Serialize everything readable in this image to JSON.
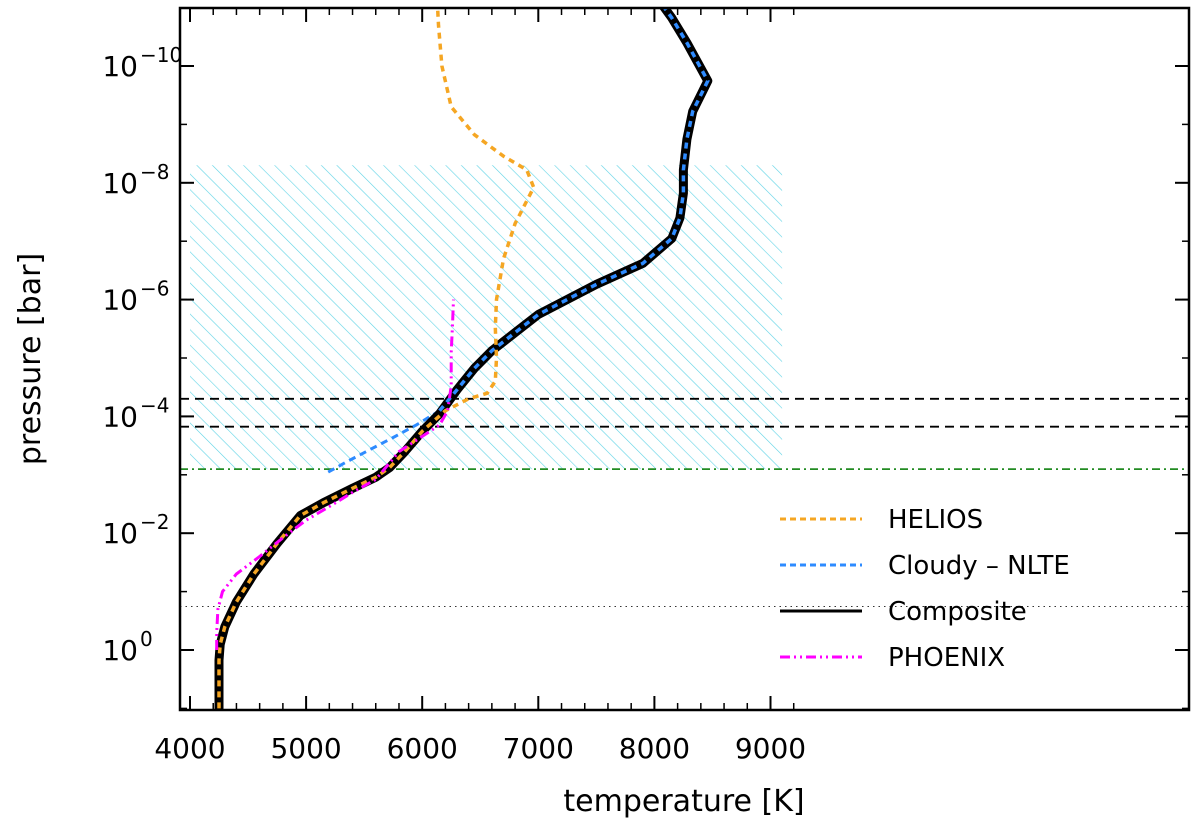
{
  "chart_data": {
    "type": "line",
    "xlabel": "temperature [K]",
    "ylabel": "pressure [bar]",
    "x_scale": "linear",
    "y_scale": "log",
    "y_inverted": true,
    "xlim": [
      3900,
      9200
    ],
    "ylim_bar": [
      10,
      1e-11
    ],
    "x_ticks": [
      "4000",
      "5000",
      "6000",
      "7000",
      "8000",
      "9000"
    ],
    "y_ticks": [
      {
        "value": 1e-10,
        "base": "10",
        "exp": "−10"
      },
      {
        "value": 1e-08,
        "base": "10",
        "exp": "−8"
      },
      {
        "value": 1e-06,
        "base": "10",
        "exp": "−6"
      },
      {
        "value": 0.0001,
        "base": "10",
        "exp": "−4"
      },
      {
        "value": 0.01,
        "base": "10",
        "exp": "−2"
      },
      {
        "value": 1,
        "base": "10",
        "exp": "0"
      }
    ],
    "grid": false,
    "legend_position": "bottom-right",
    "hatched_region": {
      "t_min": 4000,
      "t_max": 9100,
      "p_top": 5e-09,
      "p_bottom": 0.0008,
      "color": "#5fd3e6"
    },
    "reference_lines": [
      {
        "p": 5e-05,
        "style": "dashed",
        "color": "#000000"
      },
      {
        "p": 0.00015,
        "style": "dashed",
        "color": "#000000"
      },
      {
        "p": 0.0008,
        "style": "dashdot",
        "color": "#228B22"
      },
      {
        "p": 0.18,
        "style": "dotted",
        "color": "#333333"
      }
    ],
    "series": [
      {
        "name": "Composite",
        "color": "#000000",
        "style": "solid",
        "points": [
          [
            4250,
            10
          ],
          [
            4250,
            1.5
          ],
          [
            4260,
            0.8
          ],
          [
            4300,
            0.4
          ],
          [
            4400,
            0.15
          ],
          [
            4550,
            0.05
          ],
          [
            4750,
            0.015
          ],
          [
            4950,
            0.005
          ],
          [
            5150,
            0.003
          ],
          [
            5400,
            0.0017
          ],
          [
            5600,
            0.0011
          ],
          [
            5720,
            0.00075
          ],
          [
            5850,
            0.0004
          ],
          [
            6000,
            0.00018
          ],
          [
            6150,
            9e-05
          ],
          [
            6300,
            3.5e-05
          ],
          [
            6450,
            1.5e-05
          ],
          [
            6600,
            7.5e-06
          ],
          [
            7000,
            1.8e-06
          ],
          [
            7500,
            5.5e-07
          ],
          [
            7900,
            2.4e-07
          ],
          [
            8150,
            9e-08
          ],
          [
            8220,
            4e-08
          ],
          [
            8250,
            1.5e-08
          ],
          [
            8250,
            6e-09
          ],
          [
            8280,
            1.8e-09
          ],
          [
            8330,
            6e-10
          ],
          [
            8460,
            1.8e-10
          ],
          [
            8280,
            4e-11
          ],
          [
            8150,
            1.5e-11
          ],
          [
            8050,
            8e-12
          ]
        ]
      },
      {
        "name": "HELIOS",
        "color": "#F5A623",
        "style": "dashed",
        "points": [
          [
            4250,
            10
          ],
          [
            4250,
            1.5
          ],
          [
            4260,
            0.8
          ],
          [
            4300,
            0.4
          ],
          [
            4400,
            0.15
          ],
          [
            4550,
            0.05
          ],
          [
            4750,
            0.015
          ],
          [
            4950,
            0.005
          ],
          [
            5150,
            0.003
          ],
          [
            5400,
            0.0017
          ],
          [
            5600,
            0.0011
          ],
          [
            5720,
            0.00075
          ],
          [
            5850,
            0.0004
          ],
          [
            6000,
            0.00018
          ],
          [
            6200,
            8e-05
          ],
          [
            6400,
            5e-05
          ],
          [
            6560,
            4e-05
          ],
          [
            6630,
            2.5e-05
          ],
          [
            6640,
            1e-05
          ],
          [
            6630,
            3e-06
          ],
          [
            6640,
            1e-06
          ],
          [
            6700,
            2e-07
          ],
          [
            6800,
            5e-08
          ],
          [
            6960,
            1.2e-08
          ],
          [
            6900,
            6e-09
          ],
          [
            6700,
            3.5e-09
          ],
          [
            6450,
            1.5e-09
          ],
          [
            6250,
            5e-10
          ],
          [
            6170,
            1e-10
          ],
          [
            6140,
            2e-11
          ],
          [
            6130,
            8e-12
          ]
        ]
      },
      {
        "name": "Cloudy – NLTE",
        "color": "#2E8BFF",
        "style": "dashed",
        "points": [
          [
            5190,
            0.0009
          ],
          [
            5350,
            0.0006
          ],
          [
            5550,
            0.00037
          ],
          [
            5750,
            0.00023
          ],
          [
            5950,
            0.00014
          ],
          [
            6150,
            8e-05
          ],
          [
            6300,
            3.5e-05
          ],
          [
            6450,
            1.5e-05
          ],
          [
            6600,
            7.5e-06
          ],
          [
            7000,
            1.8e-06
          ],
          [
            7500,
            5.5e-07
          ],
          [
            7900,
            2.4e-07
          ],
          [
            8150,
            9e-08
          ],
          [
            8220,
            4e-08
          ],
          [
            8250,
            1.5e-08
          ],
          [
            8250,
            6e-09
          ],
          [
            8280,
            1.8e-09
          ],
          [
            8330,
            6e-10
          ],
          [
            8460,
            1.8e-10
          ],
          [
            8280,
            4e-11
          ],
          [
            8150,
            1.5e-11
          ],
          [
            8050,
            8e-12
          ]
        ]
      },
      {
        "name": "PHOENIX",
        "color": "#FF00FF",
        "style": "dashdotdot",
        "points": [
          [
            4230,
            1
          ],
          [
            4230,
            0.5
          ],
          [
            4240,
            0.2
          ],
          [
            4280,
            0.1
          ],
          [
            4400,
            0.05
          ],
          [
            4600,
            0.025
          ],
          [
            4800,
            0.012
          ],
          [
            5000,
            0.006
          ],
          [
            5200,
            0.0035
          ],
          [
            5400,
            0.002
          ],
          [
            5600,
            0.0012
          ],
          [
            5800,
            0.0004
          ],
          [
            6000,
            0.00022
          ],
          [
            6150,
            0.00014
          ],
          [
            6220,
            8e-05
          ],
          [
            6250,
            3e-05
          ],
          [
            6250,
            8e-06
          ],
          [
            6260,
            3e-06
          ],
          [
            6270,
            1e-06
          ]
        ]
      }
    ]
  }
}
